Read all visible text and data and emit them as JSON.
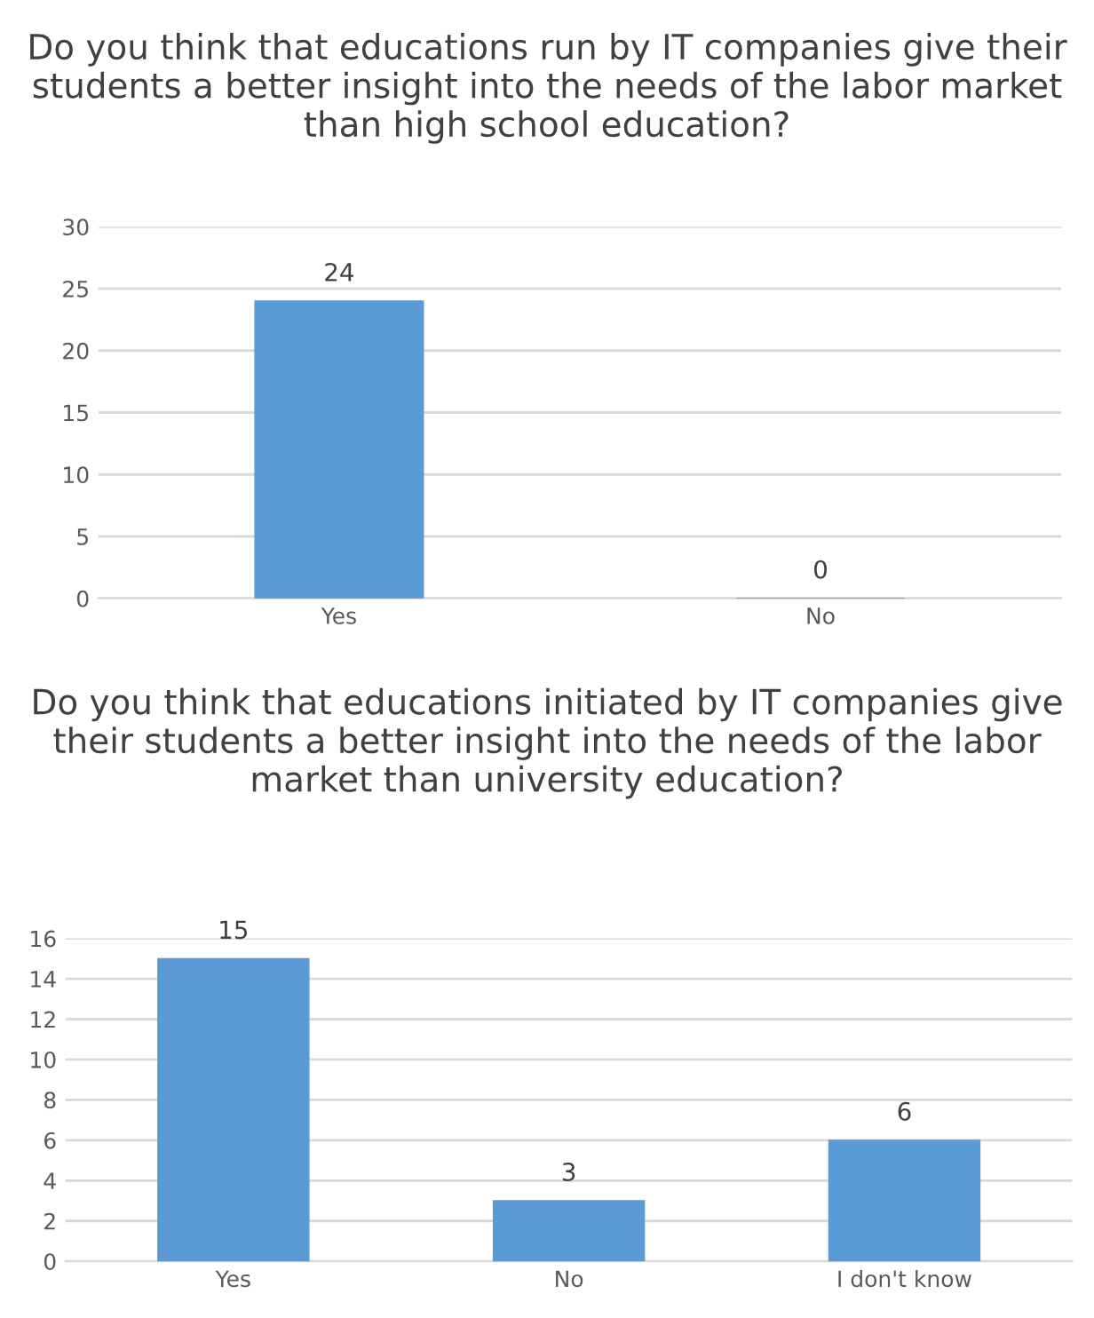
{
  "chart_data": [
    {
      "type": "bar",
      "title": "Do you think that educations run by IT companies give their students a better insight into the needs of the labor market than high school education?",
      "categories": [
        "Yes",
        "No"
      ],
      "series": [
        {
          "color": "#5b9bd5",
          "values": [
            24,
            0
          ]
        }
      ],
      "ylim": [
        0,
        30
      ],
      "yticks": [
        0,
        5,
        10,
        15,
        20,
        25,
        30
      ],
      "grid": "y",
      "data_labels": true
    },
    {
      "type": "bar",
      "title": "Do you think that educations initiated by IT companies give their students a better insight into the needs of the labor market than university education?",
      "categories": [
        "Yes",
        "No",
        "I don't know"
      ],
      "series": [
        {
          "color": "#5b9bd5",
          "values": [
            15,
            3,
            6
          ]
        }
      ],
      "ylim": [
        0,
        16
      ],
      "yticks": [
        0,
        2,
        4,
        6,
        8,
        10,
        12,
        14,
        16
      ],
      "grid": "y",
      "data_labels": true
    }
  ]
}
